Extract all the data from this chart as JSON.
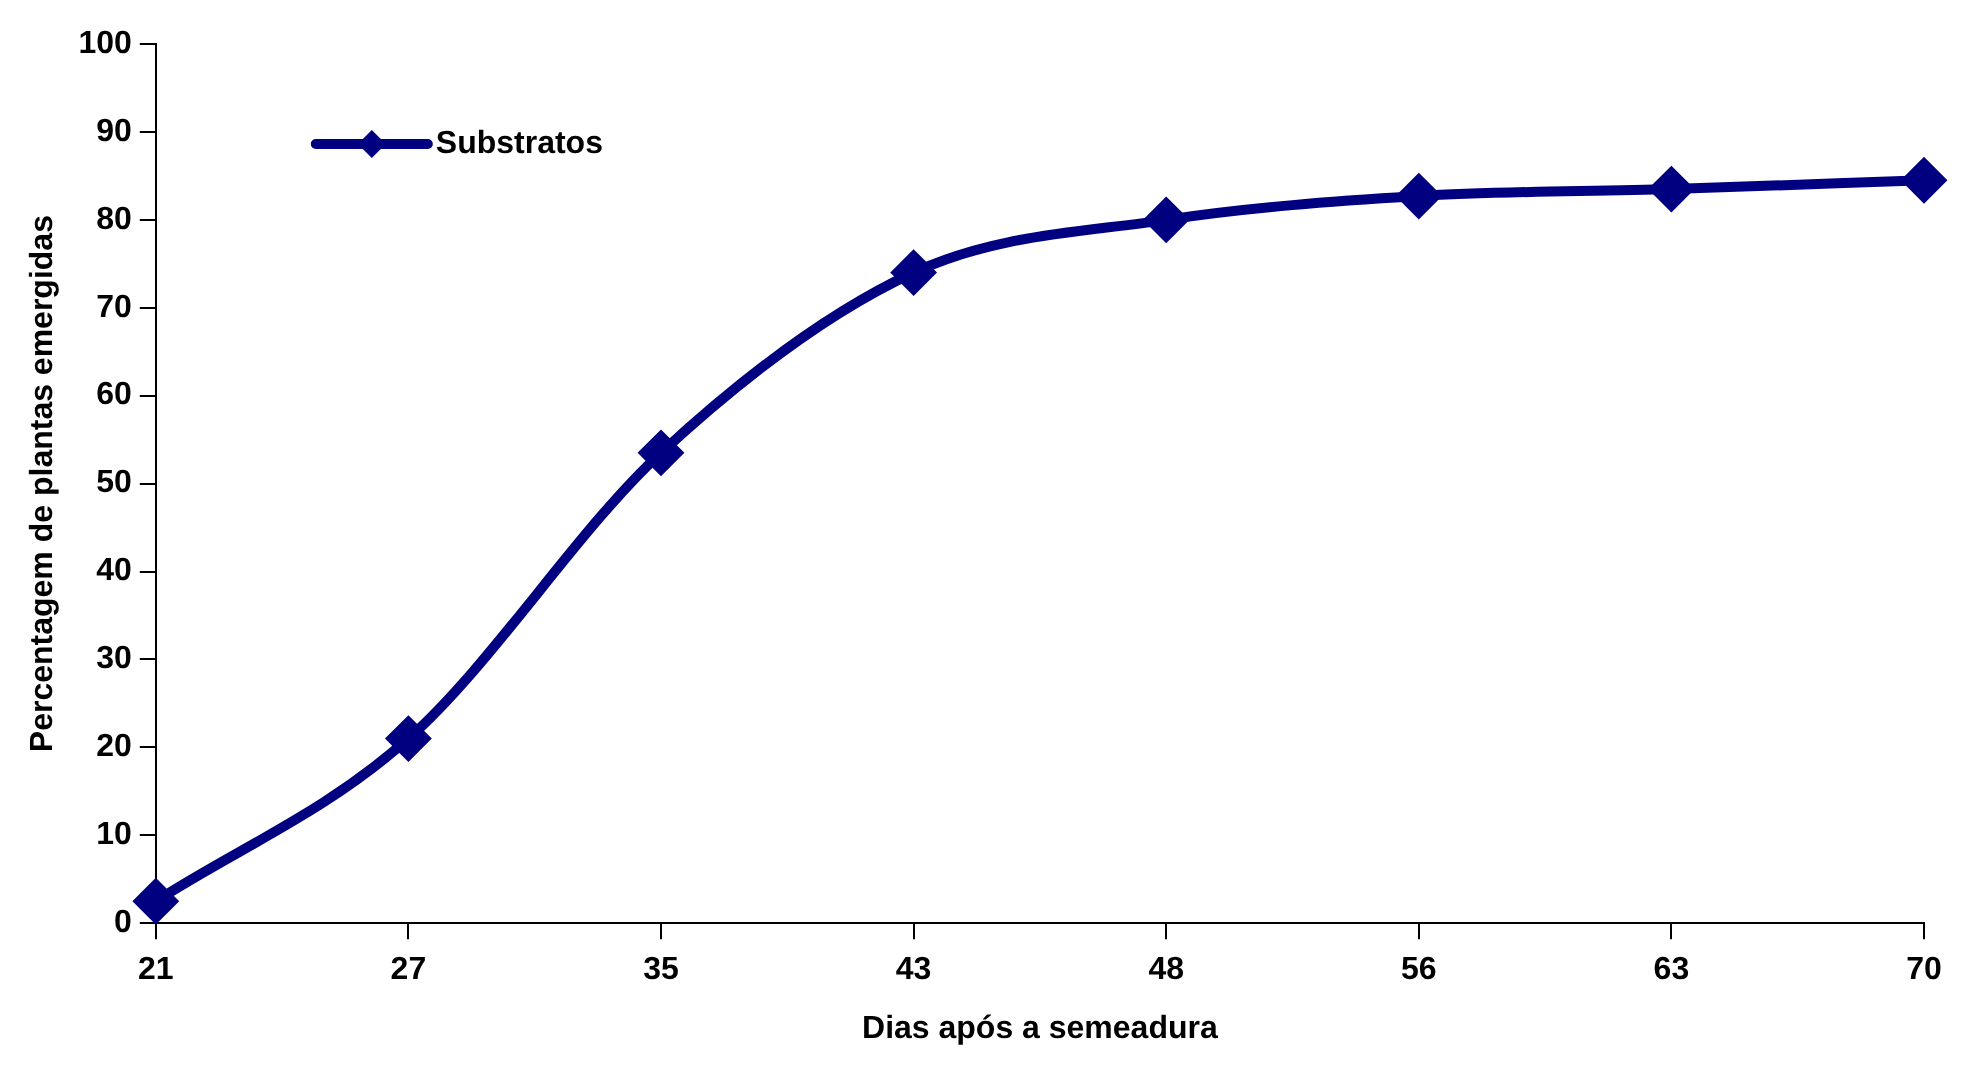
{
  "chart_data": {
    "type": "line",
    "xlabel": "Dias após a semeadura",
    "ylabel": "Percentagem de plantas emergidas",
    "categories": [
      "21",
      "27",
      "35",
      "43",
      "48",
      "56",
      "63",
      "70"
    ],
    "series": [
      {
        "name": "Substratos",
        "color": "#000080",
        "values": [
          2.5,
          21,
          53.5,
          74,
          80,
          82.7,
          83.5,
          84.5
        ]
      }
    ],
    "ylim": [
      0,
      100
    ],
    "yticks": [
      0,
      10,
      20,
      30,
      40,
      50,
      60,
      70,
      80,
      90,
      100
    ],
    "grid": false,
    "legend": "top left",
    "marker": "diamond",
    "line_style": "solid"
  }
}
